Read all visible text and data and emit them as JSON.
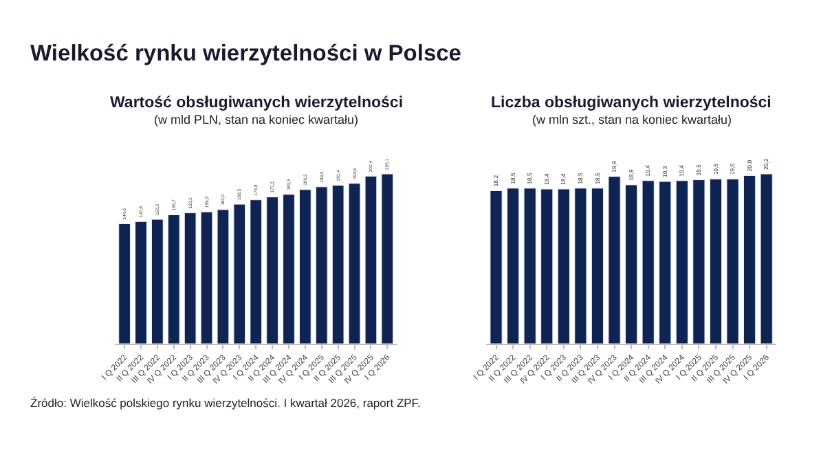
{
  "chart_data": [
    {
      "type": "bar",
      "title": "Wartość obsługiwanych wierzytelności",
      "subtitle": "(w mld PLN, stan na koniec kwartału)",
      "categories": [
        "I Q 2022",
        "II Q 2022",
        "III Q 2022",
        "IV Q 2022",
        "I Q 2023",
        "II Q 2023",
        "III Q 2023",
        "IV Q 2023",
        "I Q 2024",
        "II Q 2024",
        "III Q 2024",
        "IV Q 2024",
        "I Q 2025",
        "II Q 2025",
        "III Q 2025",
        "IV Q 2025",
        "I Q 2026"
      ],
      "values": [
        144.9,
        147.6,
        150.2,
        155.7,
        158.1,
        159.3,
        162.0,
        168.5,
        173.8,
        177.3,
        180.3,
        186.2,
        189.5,
        191.4,
        193.6,
        202.4,
        205.1
      ],
      "value_labels": [
        "144,9",
        "147,6",
        "150,2",
        "155,7",
        "158,1",
        "159,3",
        "162,0",
        "168,5",
        "173,8",
        "177,3",
        "180,3",
        "186,2",
        "189,5",
        "191,4",
        "193,6",
        "202,4",
        "205,1"
      ],
      "color": "#0f2452",
      "tick_labels": "x",
      "legend": false,
      "annotations": [
        "Wielkość rynku wierzytelności w Polsce",
        "Źródło: Wielkość polskiego rynku wierzytelności. I kwartał 2026, raport ZPF."
      ]
    },
    {
      "type": "bar",
      "title": "Liczba obsługiwanych wierzytelności",
      "subtitle": "(w mln szt., stan na koniec kwartału)",
      "categories": [
        "I Q 2022",
        "II Q 2022",
        "III Q 2022",
        "IV Q 2022",
        "I Q 2023",
        "II Q 2023",
        "III Q 2023",
        "IV Q 2023",
        "I Q 2024",
        "II Q 2024",
        "III Q 2024",
        "IV Q 2024",
        "I Q 2025",
        "II Q 2025",
        "III Q 2025",
        "IV Q 2025",
        "I Q 2026"
      ],
      "values": [
        18.2,
        18.5,
        18.5,
        18.4,
        18.4,
        18.5,
        18.5,
        19.9,
        18.9,
        19.4,
        19.3,
        19.4,
        19.5,
        19.6,
        19.6,
        20.0,
        20.2
      ],
      "value_labels": [
        "18,2",
        "18,5",
        "18,5",
        "18,4",
        "18,4",
        "18,5",
        "18,5",
        "19,9",
        "18,9",
        "19,4",
        "19,3",
        "19,4",
        "19,5",
        "19,6",
        "19,6",
        "20,0",
        "20,2"
      ],
      "color": "#0f2452",
      "tick_labels": "x",
      "legend": false
    }
  ]
}
